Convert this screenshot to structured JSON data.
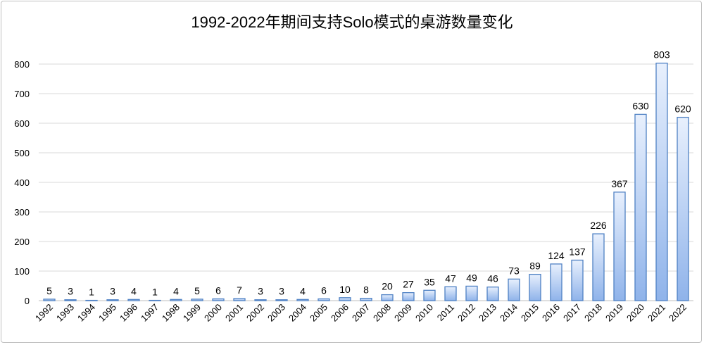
{
  "chart_data": {
    "type": "bar",
    "title": "1992-2022年期间支持Solo模式的桌游数量变化",
    "xlabel": "",
    "ylabel": "",
    "ylim": [
      0,
      800
    ],
    "yticks": [
      0,
      100,
      200,
      300,
      400,
      500,
      600,
      700,
      800
    ],
    "grid": true,
    "categories": [
      "1992",
      "1993",
      "1994",
      "1995",
      "1996",
      "1997",
      "1998",
      "1999",
      "2000",
      "2001",
      "2002",
      "2003",
      "2004",
      "2005",
      "2006",
      "2007",
      "2008",
      "2009",
      "2010",
      "2011",
      "2012",
      "2013",
      "2014",
      "2015",
      "2016",
      "2017",
      "2018",
      "2019",
      "2020",
      "2021",
      "2022"
    ],
    "values": [
      5,
      3,
      1,
      3,
      4,
      1,
      4,
      5,
      6,
      7,
      3,
      3,
      4,
      6,
      10,
      8,
      20,
      27,
      35,
      47,
      49,
      46,
      73,
      89,
      124,
      137,
      226,
      367,
      630,
      803,
      620
    ],
    "colors": {
      "bar_top": "#e8f0fd",
      "bar_bottom": "#8fb3ea",
      "bar_border": "#4f81c4",
      "grid": "#d9d9d9"
    }
  }
}
